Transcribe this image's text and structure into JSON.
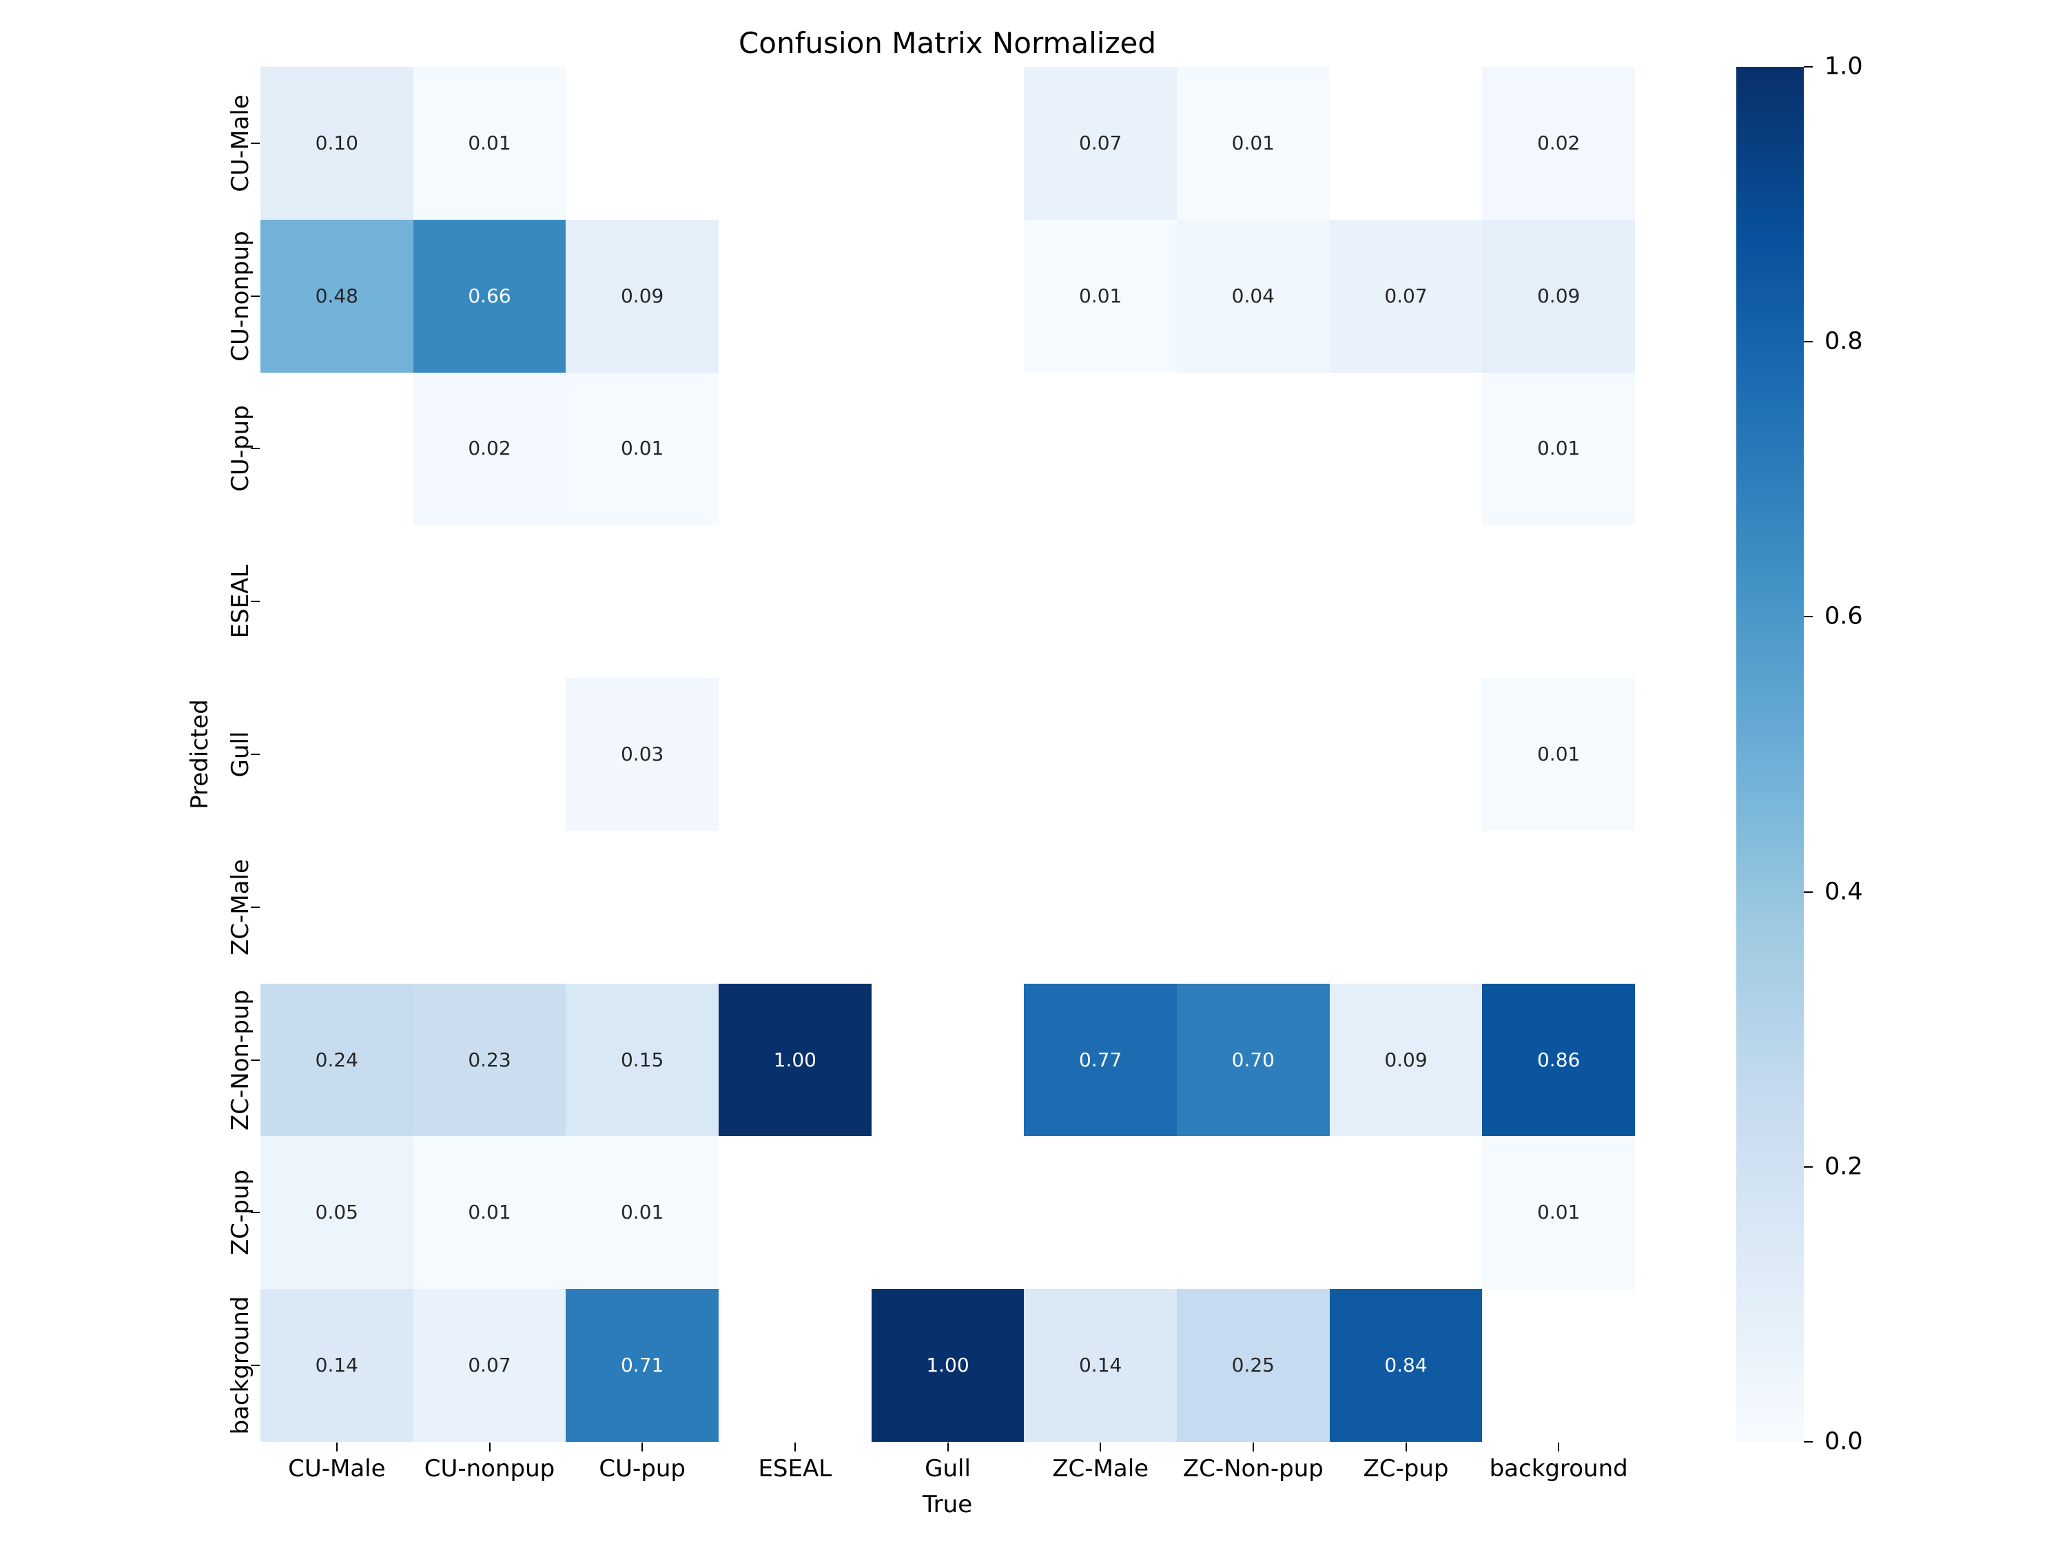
{
  "figure": {
    "background": "#ffffff"
  },
  "chart_data": {
    "type": "heatmap",
    "title": "Confusion Matrix Normalized",
    "xlabel": "True",
    "ylabel": "Predicted",
    "x_categories": [
      "CU-Male",
      "CU-nonpup",
      "CU-pup",
      "ESEAL",
      "Gull",
      "ZC-Male",
      "ZC-Non-pup",
      "ZC-pup",
      "background"
    ],
    "y_categories": [
      "CU-Male",
      "CU-nonpup",
      "CU-pup",
      "ESEAL",
      "Gull",
      "ZC-Male",
      "ZC-Non-pup",
      "ZC-pup",
      "background"
    ],
    "values": [
      [
        0.1,
        0.01,
        null,
        null,
        null,
        0.07,
        0.01,
        null,
        0.02
      ],
      [
        0.48,
        0.66,
        0.09,
        null,
        null,
        0.01,
        0.04,
        0.07,
        0.09
      ],
      [
        null,
        0.02,
        0.01,
        null,
        null,
        null,
        null,
        null,
        0.01
      ],
      [
        null,
        null,
        null,
        null,
        null,
        null,
        null,
        null,
        null
      ],
      [
        null,
        null,
        0.03,
        null,
        null,
        null,
        null,
        null,
        0.01
      ],
      [
        null,
        null,
        null,
        null,
        null,
        null,
        null,
        null,
        null
      ],
      [
        0.24,
        0.23,
        0.15,
        1.0,
        null,
        0.77,
        0.7,
        0.09,
        0.86
      ],
      [
        0.05,
        0.01,
        0.01,
        null,
        null,
        null,
        null,
        null,
        0.01
      ],
      [
        0.14,
        0.07,
        0.71,
        null,
        1.0,
        0.14,
        0.25,
        0.84,
        null
      ]
    ],
    "value_format": "2-decimals",
    "vmin": 0,
    "vmax": 1,
    "colormap": "Blues",
    "colorbar_ticks": [
      "1.0",
      "0.8",
      "0.6",
      "0.4",
      "0.2",
      "0.0"
    ],
    "colorbar_position": "right",
    "grid": false
  },
  "colors": {
    "cmap_stops": [
      "#f7fbff",
      "#deebf7",
      "#c6dbef",
      "#9ecae1",
      "#6baed6",
      "#4292c6",
      "#2171b5",
      "#08519c",
      "#08306b"
    ],
    "empty_cell": "#ffffff",
    "annotation_dark": "#262626",
    "annotation_light": "#ffffff",
    "axis_text": "#000000"
  }
}
